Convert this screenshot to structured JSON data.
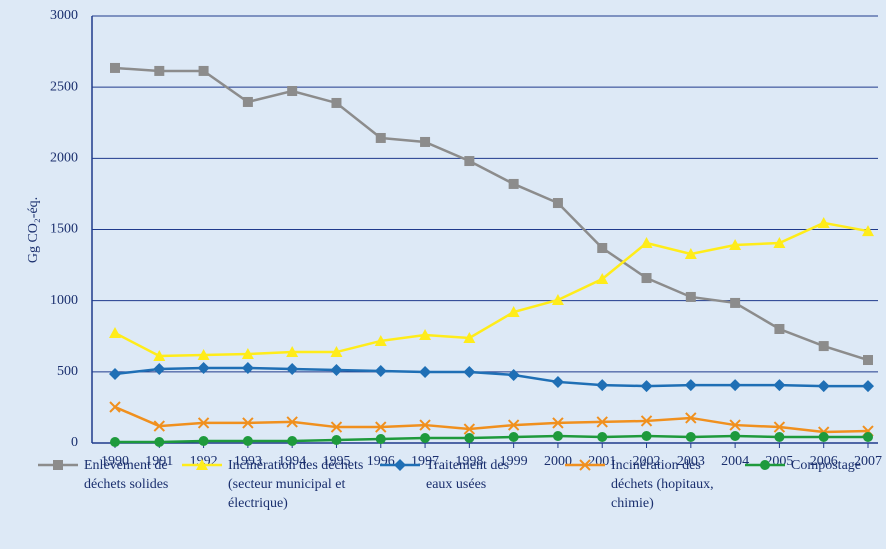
{
  "chart_data": {
    "type": "line",
    "y_label": "Gg CO₂-éq.",
    "categories": [
      "1990",
      "1991",
      "1992",
      "1993",
      "1994",
      "1995",
      "1996",
      "1997",
      "1998",
      "1999",
      "2000",
      "2001",
      "2002",
      "2003",
      "2004",
      "2005",
      "2006",
      "2007"
    ],
    "ylim": [
      0,
      3000
    ],
    "yticks": [
      0,
      500,
      1000,
      1500,
      2000,
      2500,
      3000
    ],
    "grid": true,
    "series": [
      {
        "name": "Enlèvement de déchets solides",
        "color": "#8c8c8c",
        "marker": "square",
        "values": [
          2635,
          2614,
          2614,
          2396,
          2473,
          2389,
          2143,
          2115,
          1981,
          1820,
          1686,
          1370,
          1159,
          1026,
          984,
          801,
          681,
          583
        ]
      },
      {
        "name": "Incinération des déchets (secteur municipal et électrique)",
        "color": "#ffec1a",
        "marker": "triangle",
        "values": [
          773,
          611,
          618,
          625,
          639,
          639,
          717,
          759,
          738,
          920,
          1005,
          1152,
          1405,
          1328,
          1391,
          1405,
          1546,
          1489
        ]
      },
      {
        "name": "Traitement des eaux usées",
        "color": "#1f6fb5",
        "marker": "diamond",
        "values": [
          485,
          520,
          527,
          527,
          520,
          513,
          506,
          499,
          499,
          478,
          429,
          407,
          400,
          407,
          407,
          407,
          400,
          400
        ]
      },
      {
        "name": "Incinération des déchets (hopitaux, chimie)",
        "color": "#f0901e",
        "marker": "x",
        "values": [
          253,
          119,
          141,
          141,
          148,
          112,
          112,
          126,
          98,
          126,
          141,
          148,
          155,
          176,
          126,
          112,
          77,
          84
        ]
      },
      {
        "name": "Compostage",
        "color": "#1e9a3c",
        "marker": "circle",
        "values": [
          7,
          7,
          14,
          14,
          14,
          21,
          28,
          35,
          35,
          42,
          49,
          42,
          49,
          42,
          49,
          42,
          42,
          42
        ]
      }
    ]
  }
}
